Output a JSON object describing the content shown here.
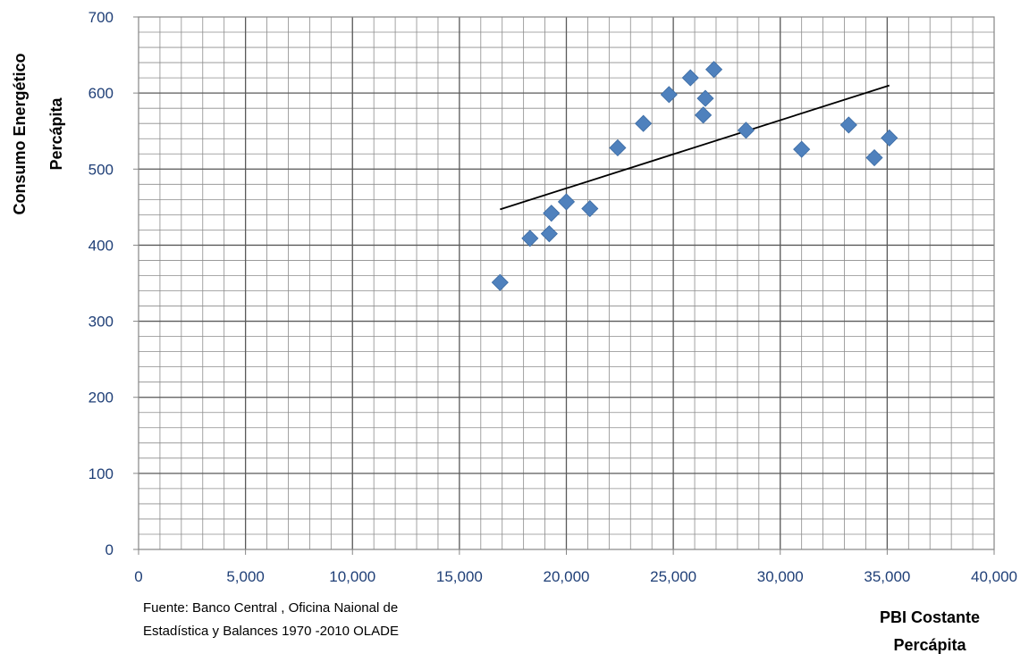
{
  "chart_data": {
    "type": "scatter",
    "title": "",
    "ylabel_lines": [
      "Consumo Energético",
      "Percápita"
    ],
    "xlabel_lines": [
      "PBI Costante",
      "Percápita"
    ],
    "xlim": [
      0,
      40000
    ],
    "ylim": [
      0,
      700
    ],
    "x_major_step": 5000,
    "y_major_step": 100,
    "x_ticks": [
      "0",
      "5,000",
      "10,000",
      "15,000",
      "20,000",
      "25,000",
      "30,000",
      "35,000",
      "40,000"
    ],
    "y_ticks": [
      "0",
      "100",
      "200",
      "300",
      "400",
      "500",
      "600",
      "700"
    ],
    "grid": true,
    "minor_grid": true,
    "legend": "none",
    "marker": "diamond",
    "marker_color": "#4f81bd",
    "trendline": {
      "type": "linear",
      "x": [
        16900,
        35100
      ],
      "y": [
        447,
        610
      ],
      "color": "#000000"
    },
    "points": [
      {
        "x": 16900,
        "y": 351
      },
      {
        "x": 18300,
        "y": 409
      },
      {
        "x": 19200,
        "y": 415
      },
      {
        "x": 19300,
        "y": 442
      },
      {
        "x": 20000,
        "y": 457
      },
      {
        "x": 21100,
        "y": 448
      },
      {
        "x": 22400,
        "y": 528
      },
      {
        "x": 23600,
        "y": 560
      },
      {
        "x": 24800,
        "y": 598
      },
      {
        "x": 25800,
        "y": 620
      },
      {
        "x": 26500,
        "y": 593
      },
      {
        "x": 26400,
        "y": 571
      },
      {
        "x": 26900,
        "y": 631
      },
      {
        "x": 28400,
        "y": 551
      },
      {
        "x": 31000,
        "y": 526
      },
      {
        "x": 33200,
        "y": 558
      },
      {
        "x": 34400,
        "y": 515
      },
      {
        "x": 35100,
        "y": 541
      }
    ]
  },
  "source_note": {
    "line1": "Fuente: Banco Central , Oficina Naional de",
    "line2": "Estadística y Balances 1970 -2010 OLADE"
  }
}
